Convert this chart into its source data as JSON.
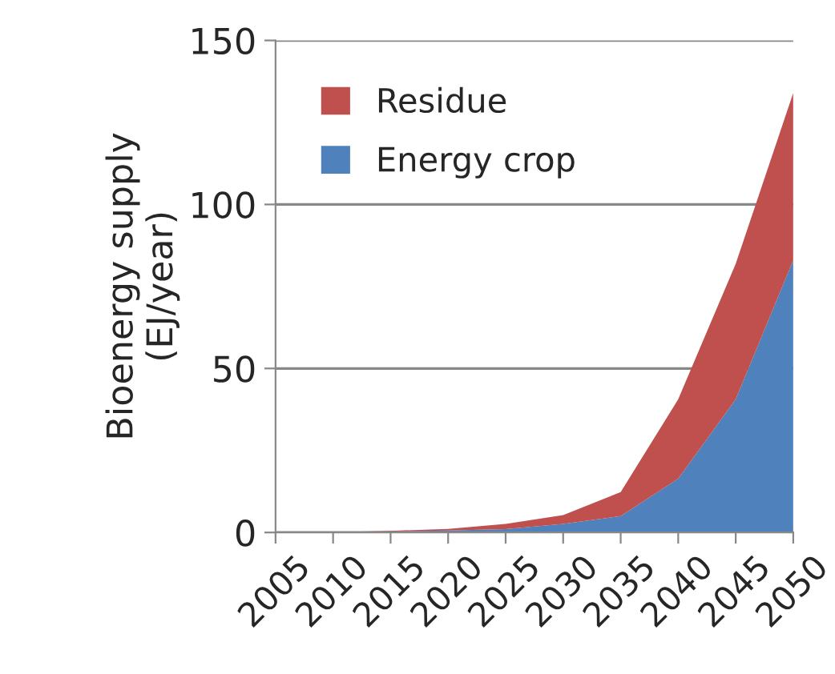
{
  "chart_data": {
    "type": "area",
    "stacked": true,
    "ylabel": "Bioenergy supply\n(EJ/year)",
    "categories": [
      "2005",
      "2010",
      "2015",
      "2020",
      "2025",
      "2030",
      "2035",
      "2040",
      "2045",
      "2050"
    ],
    "series": [
      {
        "name": "Energy crop",
        "color": "#4f81bd",
        "values": [
          0,
          0,
          0.3,
          0.6,
          1,
          2.6,
          5,
          16.4,
          40.6,
          83
        ]
      },
      {
        "name": "Residue",
        "color": "#c0504d",
        "values": [
          0,
          0.1,
          0.2,
          0.5,
          1.6,
          2.7,
          7.3,
          24.2,
          41.3,
          51
        ]
      }
    ],
    "ylim": [
      0,
      150
    ],
    "yticks": [
      0,
      50,
      100,
      150
    ],
    "grid": "y",
    "legend": "top left"
  }
}
